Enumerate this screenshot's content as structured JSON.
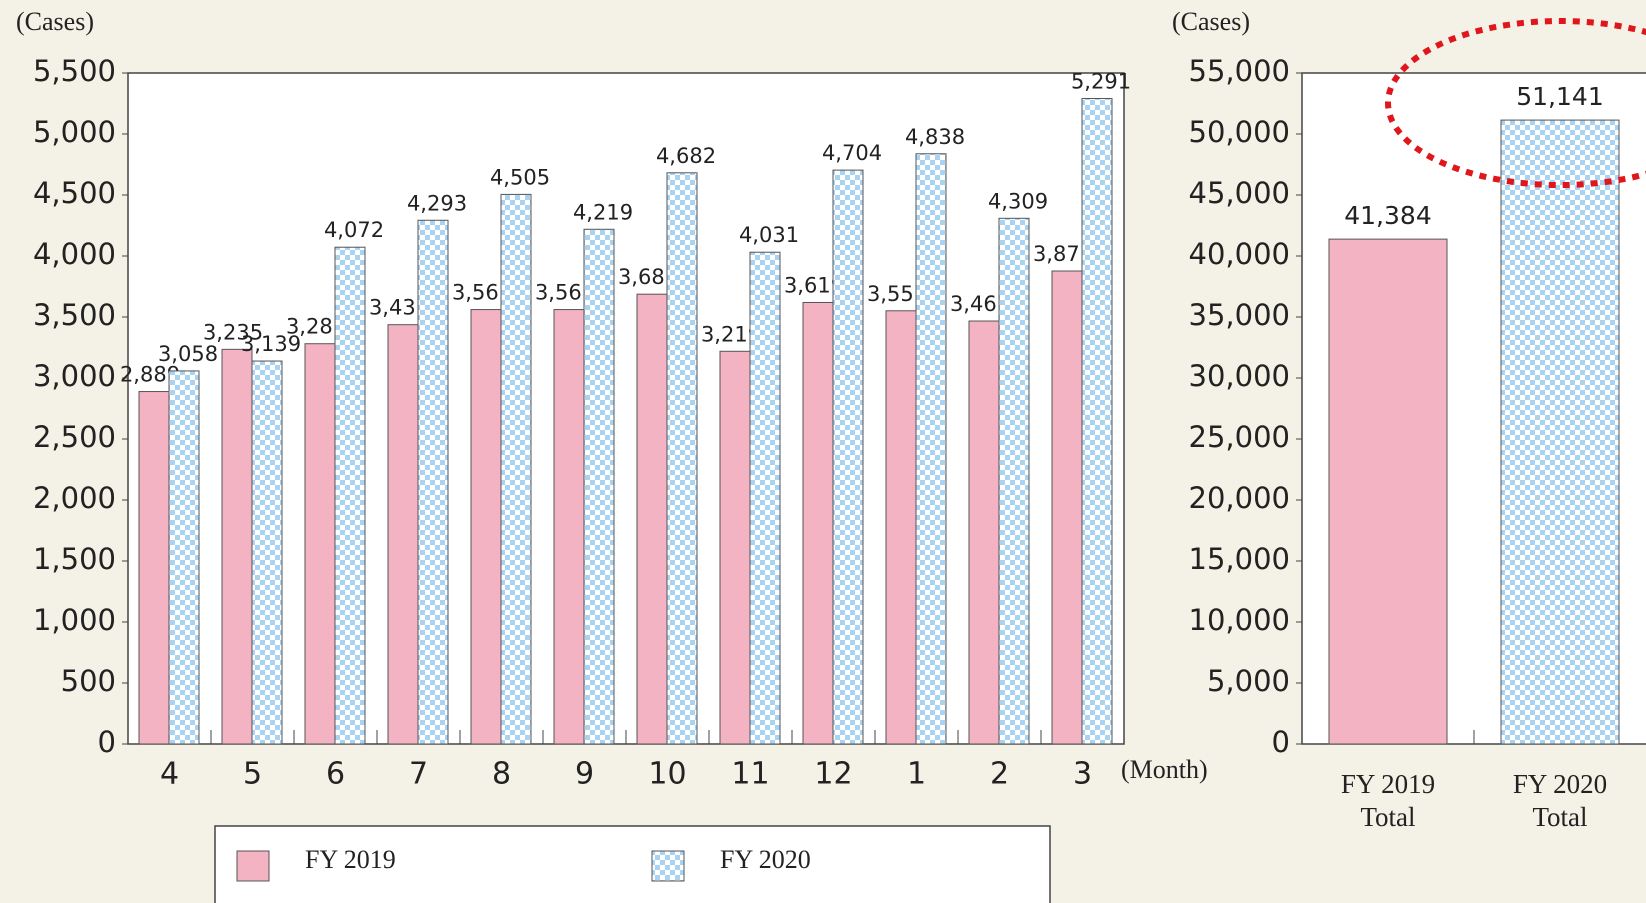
{
  "chart_data": [
    {
      "type": "grouped_bar",
      "y_unit": "(Cases)",
      "x_unit": "(Month)",
      "categories": [
        "4",
        "5",
        "6",
        "7",
        "8",
        "9",
        "10",
        "11",
        "12",
        "1",
        "2",
        "3"
      ],
      "series": [
        {
          "name": "FY 2019",
          "color": "#f4b3c2",
          "values": [
            2889,
            3235,
            3281,
            3437,
            3561,
            3561,
            3687,
            3219,
            3619,
            3551,
            3467,
            3877
          ],
          "value_labels": [
            "2,889",
            "3,235",
            "3,281",
            "3,437",
            "3,561",
            "3,561",
            "3,687",
            "3,219",
            "3,619",
            "3,551",
            "3,467",
            "3,877"
          ]
        },
        {
          "name": "FY 2020",
          "color": "#a9d3f3",
          "values": [
            3058,
            3139,
            4072,
            4293,
            4505,
            4219,
            4682,
            4031,
            4704,
            4838,
            4309,
            5291
          ],
          "value_labels": [
            "3,058",
            "3,139",
            "4,072",
            "4,293",
            "4,505",
            "4,219",
            "4,682",
            "4,031",
            "4,704",
            "4,838",
            "4,309",
            "5,291"
          ]
        }
      ],
      "ylim": [
        0,
        5500
      ],
      "yticks": [
        0,
        500,
        {
          "value": 1000,
          "label": "1,000"
        },
        {
          "value": 1500,
          "label": "1,500"
        },
        {
          "value": 2000,
          "label": "2,000"
        },
        {
          "value": 2500,
          "label": "2,500"
        },
        {
          "value": 3000,
          "label": "3,000"
        },
        {
          "value": 3500,
          "label": "3,500"
        },
        {
          "value": 4000,
          "label": "4,000"
        },
        {
          "value": 4500,
          "label": "4,500"
        },
        {
          "value": 5000,
          "label": "5,000"
        },
        {
          "value": 5500,
          "label": "5,500"
        }
      ]
    },
    {
      "type": "bar",
      "y_unit": "(Cases)",
      "categories": [
        "FY 2019 Total",
        "FY 2020 Total"
      ],
      "values": [
        41384,
        51141
      ],
      "value_labels": [
        "41,384",
        "51,141"
      ],
      "colors": [
        "#f4b3c2",
        "#a9d3f3"
      ],
      "ylim": [
        0,
        55000
      ],
      "yticks": [
        0,
        {
          "value": 5000,
          "label": "5,000"
        },
        {
          "value": 10000,
          "label": "10,000"
        },
        {
          "value": 15000,
          "label": "15,000"
        },
        {
          "value": 20000,
          "label": "20,000"
        },
        {
          "value": 25000,
          "label": "25,000"
        },
        {
          "value": 30000,
          "label": "30,000"
        },
        {
          "value": 35000,
          "label": "35,000"
        },
        {
          "value": 40000,
          "label": "40,000"
        },
        {
          "value": 45000,
          "label": "45,000"
        },
        {
          "value": 50000,
          "label": "50,000"
        },
        {
          "value": 55000,
          "label": "55,000"
        }
      ]
    }
  ]
}
